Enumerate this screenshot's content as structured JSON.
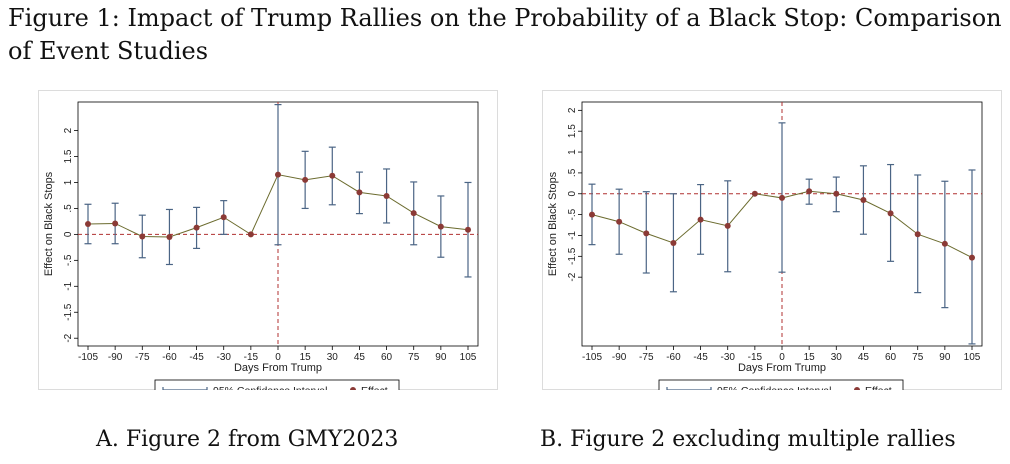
{
  "title": "Figure 1: Impact of Trump Rallies on the Probability of a Black Stop: Comparison of Event Studies",
  "chart_data": [
    {
      "type": "line",
      "caption": "A. Figure 2 from GMY2023",
      "xlabel": "Days From Trump",
      "ylabel": "Effect on Black Stops",
      "x": [
        -105,
        -90,
        -75,
        -60,
        -45,
        -30,
        -15,
        0,
        15,
        30,
        45,
        60,
        75,
        90,
        105
      ],
      "xticks": [
        "-105",
        "-90",
        "-75",
        "-60",
        "-45",
        "-30",
        "-15",
        "0",
        "15",
        "30",
        "45",
        "60",
        "75",
        "90",
        "105"
      ],
      "yticks": [
        "-2",
        "-1.5",
        "-1",
        "-.5",
        "0",
        ".5",
        "1",
        "1.5",
        "2"
      ],
      "ylim": [
        -2.15,
        2.55
      ],
      "series": [
        {
          "name": "Effect",
          "values": [
            0.2,
            0.21,
            -0.04,
            -0.05,
            0.13,
            0.33,
            0.0,
            1.15,
            1.05,
            1.13,
            0.81,
            0.74,
            0.41,
            0.15,
            0.09
          ],
          "color": "#8b3a36"
        },
        {
          "name": "95% Confidence Interval",
          "lower": [
            -0.18,
            -0.18,
            -0.45,
            -0.58,
            -0.27,
            0.0,
            0.0,
            -0.2,
            0.5,
            0.57,
            0.4,
            0.22,
            -0.2,
            -0.44,
            -0.82
          ],
          "upper": [
            0.58,
            0.6,
            0.37,
            0.48,
            0.52,
            0.65,
            0.0,
            2.5,
            1.6,
            1.68,
            1.2,
            1.26,
            1.01,
            0.74,
            1.0
          ],
          "color": "#4b6585"
        }
      ],
      "reference_lines": {
        "x": 0,
        "y": 0,
        "color": "#b03030"
      },
      "legend": "bottom"
    },
    {
      "type": "line",
      "caption": "B. Figure 2 excluding multiple rallies",
      "xlabel": "Days From Trump",
      "ylabel": "Effect on Black Stops",
      "x": [
        -105,
        -90,
        -75,
        -60,
        -45,
        -30,
        -15,
        0,
        15,
        30,
        45,
        60,
        75,
        90,
        105
      ],
      "xticks": [
        "-105",
        "-90",
        "-75",
        "-60",
        "-45",
        "-30",
        "-15",
        "0",
        "15",
        "30",
        "45",
        "60",
        "75",
        "90",
        "105"
      ],
      "yticks": [
        "-2",
        "-1.5",
        "-1",
        "-.5",
        "0",
        ".5",
        "1",
        "1.5",
        "2"
      ],
      "ylim": [
        -3.65,
        2.2
      ],
      "series": [
        {
          "name": "Effect",
          "values": [
            -0.5,
            -0.67,
            -0.95,
            -1.18,
            -0.62,
            -0.77,
            0.0,
            -0.1,
            0.06,
            0.0,
            -0.15,
            -0.47,
            -0.97,
            -1.2,
            -1.53
          ],
          "color": "#8b3a36"
        },
        {
          "name": "95% Confidence Interval",
          "lower": [
            -1.22,
            -1.45,
            -1.9,
            -2.35,
            -1.45,
            -1.87,
            0.0,
            -1.88,
            -0.25,
            -0.43,
            -0.97,
            -1.62,
            -2.37,
            -2.73,
            -3.6
          ],
          "upper": [
            0.23,
            0.11,
            0.05,
            0.0,
            0.22,
            0.31,
            0.0,
            1.7,
            0.35,
            0.4,
            0.67,
            0.7,
            0.45,
            0.3,
            0.57
          ],
          "color": "#4b6585"
        }
      ],
      "reference_lines": {
        "x": 0,
        "y": 0,
        "color": "#b03030"
      },
      "legend": "bottom"
    }
  ]
}
